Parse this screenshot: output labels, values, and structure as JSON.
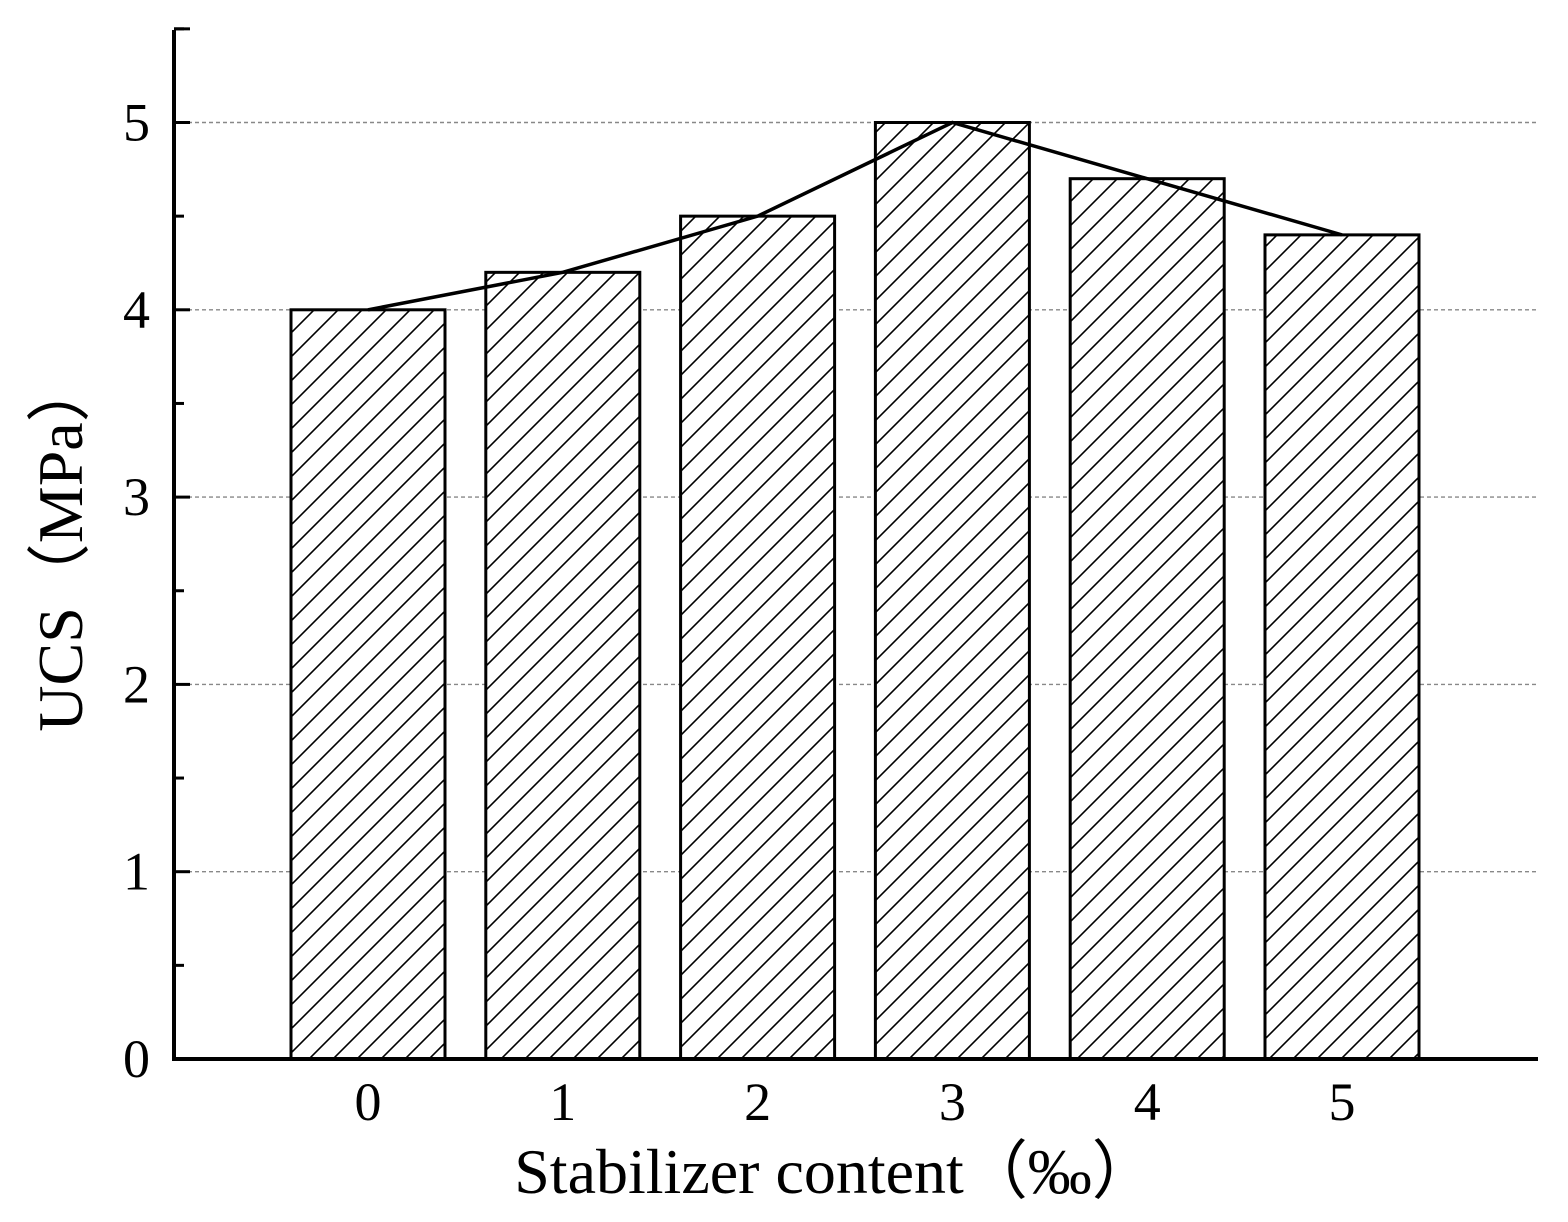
{
  "chart_data": {
    "type": "bar",
    "categories": [
      "0",
      "1",
      "2",
      "3",
      "4",
      "5"
    ],
    "values": [
      4.0,
      4.2,
      4.5,
      5.0,
      4.7,
      4.4
    ],
    "overlay_line": true,
    "title": "",
    "xlabel": "Stabilizer content（‰）",
    "ylabel": "UCS（MPa）",
    "ylim": [
      0,
      5.5
    ],
    "yticks": [
      "0",
      "1",
      "2",
      "3",
      "4",
      "5"
    ],
    "grid": "horizontal dashed at major y ticks",
    "bar_fill": "diagonal hatch",
    "colors": {
      "axis": "#000000",
      "bar_stroke": "#000000",
      "hatch": "#000000",
      "bar_background": "#ffffff",
      "grid": "#888888",
      "line": "#000000"
    }
  }
}
